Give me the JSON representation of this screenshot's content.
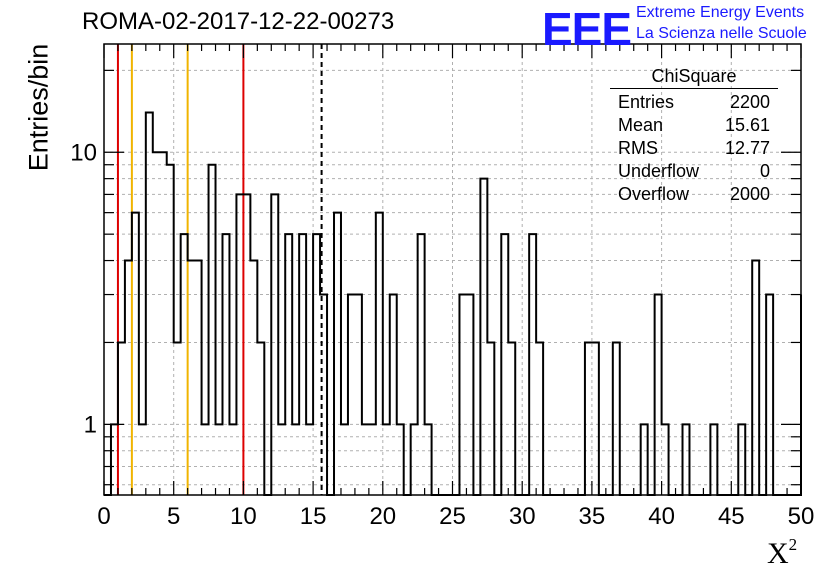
{
  "header": {
    "title": "ROMA-02-2017-12-22-00273",
    "logo_text": "EEE",
    "logo_line1": "Extreme Energy Events",
    "logo_line2": "La Scienza nelle Scuole"
  },
  "stats_box": {
    "title": "ChiSquare",
    "rows": [
      {
        "label": "Entries",
        "value": "2200"
      },
      {
        "label": "Mean",
        "value": "15.61"
      },
      {
        "label": "RMS",
        "value": "12.77"
      },
      {
        "label": "Underflow",
        "value": "0"
      },
      {
        "label": "Overflow",
        "value": "2000"
      }
    ]
  },
  "chart_data": {
    "type": "histogram",
    "ylabel": "Entries/bin",
    "xlabel": "X",
    "xlabel_superscript": "2",
    "xlim": [
      0,
      50
    ],
    "ylim": [
      0.55,
      25
    ],
    "yscale": "log",
    "grid": true,
    "bin_width": 0.5,
    "x_ticks": [
      0,
      5,
      10,
      15,
      20,
      25,
      30,
      35,
      40,
      45,
      50
    ],
    "y_tick_labels": [
      {
        "value": 1,
        "label": "1"
      },
      {
        "value": 10,
        "label": "10"
      }
    ],
    "bins": [
      {
        "x": 0.5,
        "y": 1
      },
      {
        "x": 1.0,
        "y": 2
      },
      {
        "x": 1.5,
        "y": 4
      },
      {
        "x": 2.0,
        "y": 6
      },
      {
        "x": 2.5,
        "y": 1
      },
      {
        "x": 3.0,
        "y": 14
      },
      {
        "x": 3.5,
        "y": 10
      },
      {
        "x": 4.0,
        "y": 10
      },
      {
        "x": 4.5,
        "y": 9
      },
      {
        "x": 5.0,
        "y": 2
      },
      {
        "x": 5.5,
        "y": 5
      },
      {
        "x": 6.0,
        "y": 4
      },
      {
        "x": 6.5,
        "y": 4
      },
      {
        "x": 7.0,
        "y": 1
      },
      {
        "x": 7.5,
        "y": 9
      },
      {
        "x": 8.0,
        "y": 1
      },
      {
        "x": 8.5,
        "y": 5
      },
      {
        "x": 9.0,
        "y": 1
      },
      {
        "x": 9.5,
        "y": 7
      },
      {
        "x": 10.0,
        "y": 7
      },
      {
        "x": 10.5,
        "y": 4
      },
      {
        "x": 11.0,
        "y": 2
      },
      {
        "x": 12.0,
        "y": 7
      },
      {
        "x": 12.5,
        "y": 1
      },
      {
        "x": 13.0,
        "y": 5
      },
      {
        "x": 13.5,
        "y": 1
      },
      {
        "x": 14.0,
        "y": 5
      },
      {
        "x": 14.5,
        "y": 1
      },
      {
        "x": 15.0,
        "y": 5
      },
      {
        "x": 15.5,
        "y": 3
      },
      {
        "x": 16.5,
        "y": 6
      },
      {
        "x": 17.0,
        "y": 1
      },
      {
        "x": 17.5,
        "y": 3
      },
      {
        "x": 18.0,
        "y": 3
      },
      {
        "x": 18.5,
        "y": 1
      },
      {
        "x": 19.0,
        "y": 1
      },
      {
        "x": 19.5,
        "y": 6
      },
      {
        "x": 20.0,
        "y": 1
      },
      {
        "x": 20.5,
        "y": 3
      },
      {
        "x": 21.0,
        "y": 1
      },
      {
        "x": 22.0,
        "y": 1
      },
      {
        "x": 22.5,
        "y": 5
      },
      {
        "x": 23.0,
        "y": 1
      },
      {
        "x": 25.5,
        "y": 3
      },
      {
        "x": 26.0,
        "y": 3
      },
      {
        "x": 27.0,
        "y": 8
      },
      {
        "x": 27.5,
        "y": 2
      },
      {
        "x": 28.5,
        "y": 5
      },
      {
        "x": 29.0,
        "y": 2
      },
      {
        "x": 30.5,
        "y": 5
      },
      {
        "x": 31.0,
        "y": 2
      },
      {
        "x": 34.5,
        "y": 2
      },
      {
        "x": 35.0,
        "y": 2
      },
      {
        "x": 36.5,
        "y": 2
      },
      {
        "x": 38.5,
        "y": 1
      },
      {
        "x": 39.5,
        "y": 3
      },
      {
        "x": 40.0,
        "y": 1
      },
      {
        "x": 41.5,
        "y": 1
      },
      {
        "x": 43.5,
        "y": 1
      },
      {
        "x": 45.5,
        "y": 1
      },
      {
        "x": 46.5,
        "y": 4
      },
      {
        "x": 47.5,
        "y": 3
      }
    ],
    "vertical_lines": [
      {
        "x": 1.0,
        "color": "#dd0000",
        "style": "solid"
      },
      {
        "x": 2.0,
        "color": "#f0b400",
        "style": "solid"
      },
      {
        "x": 6.0,
        "color": "#f0b400",
        "style": "solid"
      },
      {
        "x": 10.0,
        "color": "#dd0000",
        "style": "solid"
      },
      {
        "x": 15.61,
        "color": "#000000",
        "style": "dashed"
      }
    ],
    "colors": {
      "line": "#000000",
      "grid": "#b0b0b0",
      "logo": "#1a1aff"
    }
  }
}
